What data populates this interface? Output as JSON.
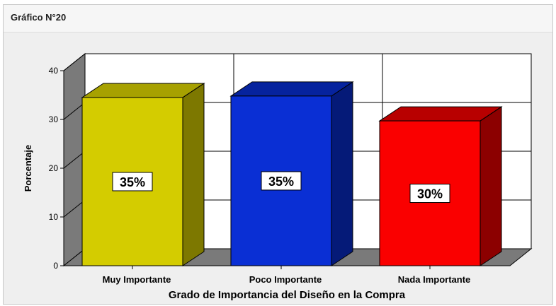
{
  "header": {
    "title": "Gráfico N°20"
  },
  "chart_data": {
    "type": "bar",
    "title": "",
    "xlabel": "Grado de Importancia del Diseño en la Compra",
    "ylabel": "Porcentaje",
    "ylim": [
      0,
      40
    ],
    "yticks": [
      0,
      10,
      20,
      30,
      40
    ],
    "grid": true,
    "categories": [
      "Muy Importante",
      "Poco Importante",
      "Nada Importante"
    ],
    "values": [
      34.5,
      34.8,
      29.7
    ],
    "data_labels": [
      "35%",
      "35%",
      "30%"
    ],
    "colors": {
      "front": [
        "#d4cc00",
        "#0a2fd4",
        "#fa0000"
      ],
      "top": [
        "#a7a100",
        "#06239e",
        "#b80000"
      ],
      "side": [
        "#7d7800",
        "#051a78",
        "#8c0000"
      ]
    }
  }
}
